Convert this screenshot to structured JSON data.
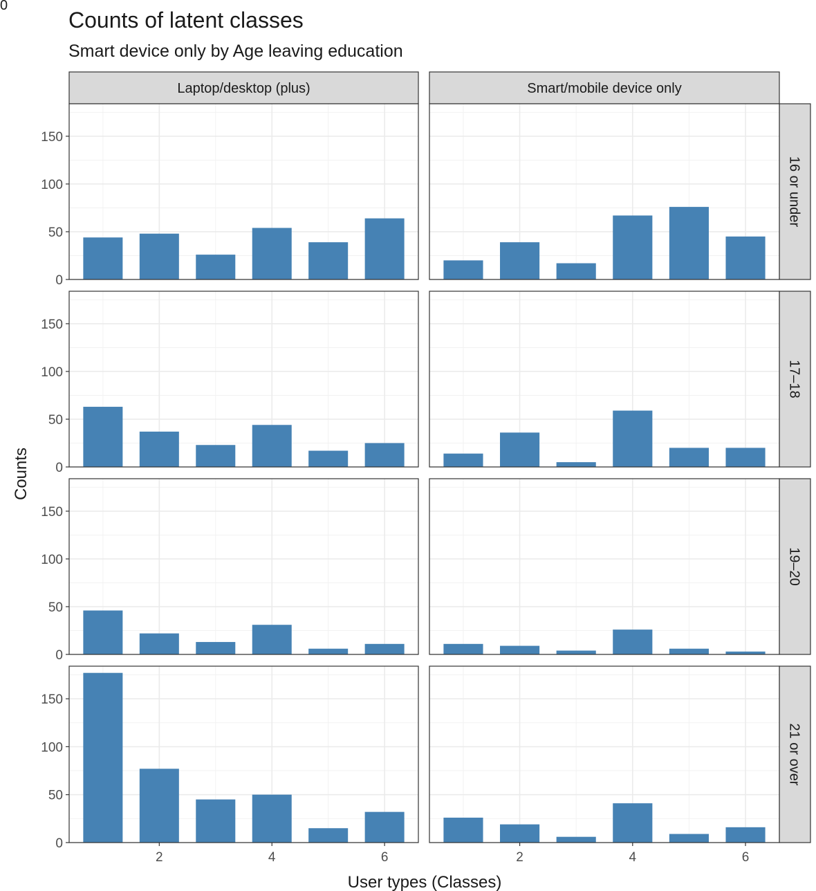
{
  "corner_label": "0",
  "chart_data": {
    "type": "bar",
    "title": "Counts of latent classes",
    "subtitle": "Smart device only by Age leaving education",
    "xlabel": "User types (Classes)",
    "ylabel": "Counts",
    "x_ticks": [
      2,
      4,
      6
    ],
    "y_ticks": [
      0,
      50,
      100,
      150
    ],
    "ylim": [
      0,
      184
    ],
    "xlim": [
      0.4,
      6.6
    ],
    "grid": true,
    "bar_color": "#4682B4",
    "facet_columns": [
      "Laptop/desktop (plus)",
      "Smart/mobile device only"
    ],
    "facet_rows": [
      "16 or under",
      "17–18",
      "19–20",
      "21 or over"
    ],
    "categories": [
      1,
      2,
      3,
      4,
      5,
      6
    ],
    "panels": [
      {
        "row": "16 or under",
        "column": "Laptop/desktop (plus)",
        "values": [
          44,
          48,
          26,
          54,
          39,
          64
        ]
      },
      {
        "row": "16 or under",
        "column": "Smart/mobile device only",
        "values": [
          20,
          39,
          17,
          67,
          76,
          45
        ]
      },
      {
        "row": "17–18",
        "column": "Laptop/desktop (plus)",
        "values": [
          63,
          37,
          23,
          44,
          17,
          25
        ]
      },
      {
        "row": "17–18",
        "column": "Smart/mobile device only",
        "values": [
          14,
          36,
          5,
          59,
          20,
          20
        ]
      },
      {
        "row": "19–20",
        "column": "Laptop/desktop (plus)",
        "values": [
          46,
          22,
          13,
          31,
          6,
          11
        ]
      },
      {
        "row": "19–20",
        "column": "Smart/mobile device only",
        "values": [
          11,
          9,
          4,
          26,
          6,
          3
        ]
      },
      {
        "row": "21 or over",
        "column": "Laptop/desktop (plus)",
        "values": [
          177,
          77,
          45,
          50,
          15,
          32
        ]
      },
      {
        "row": "21 or over",
        "column": "Smart/mobile device only",
        "values": [
          26,
          19,
          6,
          41,
          9,
          16
        ]
      }
    ]
  }
}
